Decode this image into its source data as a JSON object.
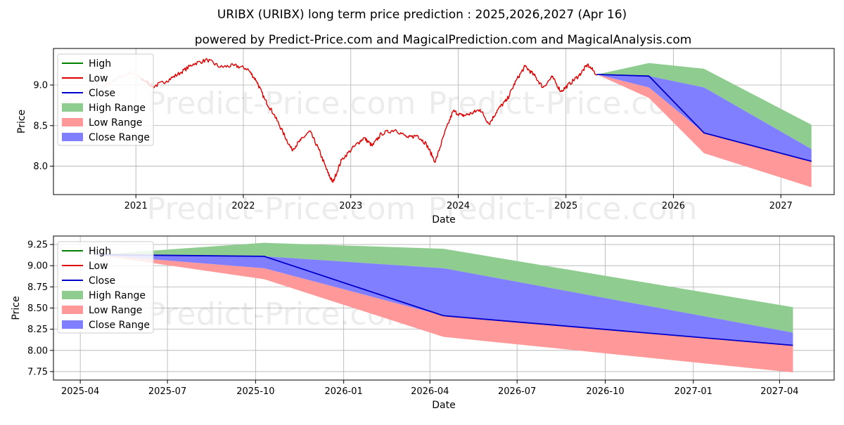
{
  "title": "URIBX (URIBX) long term price prediction : 2025,2026,2027 (Apr 16)",
  "subtitle": "powered by Predict-Price.com and MagicalPrediction.com and MagicalAnalysis.com",
  "watermark": "Predict-Price.com",
  "colors": {
    "high": "#008000",
    "low": "#dd0000",
    "close": "#0000cc",
    "high_range": "#8fcc8f",
    "low_range": "#ff9999",
    "close_range": "#7f7fff",
    "grid": "#b0b0b0"
  },
  "legend": {
    "placement": "top-left",
    "entries": [
      {
        "label": "High",
        "kind": "line",
        "color": "#008000"
      },
      {
        "label": "Low",
        "kind": "line",
        "color": "#dd0000"
      },
      {
        "label": "Close",
        "kind": "line",
        "color": "#0000cc"
      },
      {
        "label": "High Range",
        "kind": "patch",
        "color": "#8fcc8f"
      },
      {
        "label": "Low Range",
        "kind": "patch",
        "color": "#ff9999"
      },
      {
        "label": "Close Range",
        "kind": "patch",
        "color": "#7f7fff"
      }
    ]
  },
  "chart_data": [
    {
      "type": "line",
      "xlabel": "Date",
      "ylabel": "Price",
      "grid": true,
      "x_range": [
        "2020-03-27",
        "2027-07-01"
      ],
      "ylim": [
        7.65,
        9.45
      ],
      "x_ticks": [
        {
          "date": "2021-01-01",
          "label": "2021"
        },
        {
          "date": "2022-01-01",
          "label": "2022"
        },
        {
          "date": "2023-01-01",
          "label": "2023"
        },
        {
          "date": "2024-01-01",
          "label": "2024"
        },
        {
          "date": "2025-01-01",
          "label": "2025"
        },
        {
          "date": "2026-01-01",
          "label": "2026"
        },
        {
          "date": "2027-01-01",
          "label": "2027"
        }
      ],
      "y_ticks": [
        {
          "value": 8.0,
          "label": "8.0"
        },
        {
          "value": 8.5,
          "label": "8.5"
        },
        {
          "value": 9.0,
          "label": "9.0"
        }
      ],
      "history_low": [
        {
          "date": "2020-04-15",
          "value": 8.75
        },
        {
          "date": "2020-06-15",
          "value": 8.86
        },
        {
          "date": "2020-08-01",
          "value": 8.93
        },
        {
          "date": "2020-09-15",
          "value": 8.98
        },
        {
          "date": "2020-11-01",
          "value": 9.09
        },
        {
          "date": "2020-12-15",
          "value": 9.15
        },
        {
          "date": "2021-02-01",
          "value": 9.05
        },
        {
          "date": "2021-03-01",
          "value": 8.98
        },
        {
          "date": "2021-04-15",
          "value": 9.05
        },
        {
          "date": "2021-06-01",
          "value": 9.15
        },
        {
          "date": "2021-07-15",
          "value": 9.26
        },
        {
          "date": "2021-09-01",
          "value": 9.31
        },
        {
          "date": "2021-10-15",
          "value": 9.22
        },
        {
          "date": "2021-12-01",
          "value": 9.24
        },
        {
          "date": "2022-01-15",
          "value": 9.2
        },
        {
          "date": "2022-02-15",
          "value": 9.05
        },
        {
          "date": "2022-03-15",
          "value": 8.82
        },
        {
          "date": "2022-04-15",
          "value": 8.64
        },
        {
          "date": "2022-05-15",
          "value": 8.42
        },
        {
          "date": "2022-06-15",
          "value": 8.2
        },
        {
          "date": "2022-07-15",
          "value": 8.32
        },
        {
          "date": "2022-08-15",
          "value": 8.43
        },
        {
          "date": "2022-09-15",
          "value": 8.2
        },
        {
          "date": "2022-10-15",
          "value": 7.92
        },
        {
          "date": "2022-11-01",
          "value": 7.8
        },
        {
          "date": "2022-12-01",
          "value": 8.08
        },
        {
          "date": "2023-01-15",
          "value": 8.25
        },
        {
          "date": "2023-02-15",
          "value": 8.35
        },
        {
          "date": "2023-03-15",
          "value": 8.25
        },
        {
          "date": "2023-04-15",
          "value": 8.4
        },
        {
          "date": "2023-06-01",
          "value": 8.45
        },
        {
          "date": "2023-07-15",
          "value": 8.35
        },
        {
          "date": "2023-08-15",
          "value": 8.38
        },
        {
          "date": "2023-09-15",
          "value": 8.27
        },
        {
          "date": "2023-10-15",
          "value": 8.05
        },
        {
          "date": "2023-11-15",
          "value": 8.4
        },
        {
          "date": "2023-12-15",
          "value": 8.68
        },
        {
          "date": "2024-01-15",
          "value": 8.62
        },
        {
          "date": "2024-02-15",
          "value": 8.65
        },
        {
          "date": "2024-03-15",
          "value": 8.7
        },
        {
          "date": "2024-04-15",
          "value": 8.52
        },
        {
          "date": "2024-05-15",
          "value": 8.7
        },
        {
          "date": "2024-06-15",
          "value": 8.82
        },
        {
          "date": "2024-07-15",
          "value": 9.05
        },
        {
          "date": "2024-08-15",
          "value": 9.23
        },
        {
          "date": "2024-09-15",
          "value": 9.12
        },
        {
          "date": "2024-10-15",
          "value": 8.97
        },
        {
          "date": "2024-11-15",
          "value": 9.1
        },
        {
          "date": "2024-12-15",
          "value": 8.92
        },
        {
          "date": "2025-01-15",
          "value": 9.02
        },
        {
          "date": "2025-02-15",
          "value": 9.12
        },
        {
          "date": "2025-03-15",
          "value": 9.25
        },
        {
          "date": "2025-04-16",
          "value": 9.13
        }
      ],
      "forecast": {
        "close": [
          {
            "date": "2025-04-16",
            "value": 9.13
          },
          {
            "date": "2025-10-10",
            "value": 9.11
          },
          {
            "date": "2026-04-15",
            "value": 8.41
          },
          {
            "date": "2027-04-15",
            "value": 8.06
          }
        ],
        "high_range": [
          {
            "date": "2025-04-16",
            "upper": 9.13,
            "lower": 9.13
          },
          {
            "date": "2025-10-10",
            "upper": 9.27,
            "lower": 9.11
          },
          {
            "date": "2026-04-15",
            "upper": 9.2,
            "lower": 8.97
          },
          {
            "date": "2027-04-15",
            "upper": 8.51,
            "lower": 8.21
          }
        ],
        "close_range": [
          {
            "date": "2025-04-16",
            "upper": 9.13,
            "lower": 9.13
          },
          {
            "date": "2025-10-10",
            "upper": 9.11,
            "lower": 8.97
          },
          {
            "date": "2026-04-15",
            "upper": 8.97,
            "lower": 8.41
          },
          {
            "date": "2027-04-15",
            "upper": 8.21,
            "lower": 8.06
          }
        ],
        "low_range": [
          {
            "date": "2025-04-16",
            "upper": 9.13,
            "lower": 9.13
          },
          {
            "date": "2025-10-10",
            "upper": 8.97,
            "lower": 8.84
          },
          {
            "date": "2026-04-15",
            "upper": 8.41,
            "lower": 8.16
          },
          {
            "date": "2027-04-15",
            "upper": 8.06,
            "lower": 7.74
          }
        ]
      }
    },
    {
      "type": "line",
      "xlabel": "Date",
      "ylabel": "Price",
      "grid": true,
      "x_range": [
        "2025-03-04",
        "2027-05-28"
      ],
      "ylim": [
        7.65,
        9.35
      ],
      "x_ticks": [
        {
          "date": "2025-04-01",
          "label": "2025-04"
        },
        {
          "date": "2025-07-01",
          "label": "2025-07"
        },
        {
          "date": "2025-10-01",
          "label": "2025-10"
        },
        {
          "date": "2026-01-01",
          "label": "2026-01"
        },
        {
          "date": "2026-04-01",
          "label": "2026-04"
        },
        {
          "date": "2026-07-01",
          "label": "2026-07"
        },
        {
          "date": "2026-10-01",
          "label": "2026-10"
        },
        {
          "date": "2027-01-01",
          "label": "2027-01"
        },
        {
          "date": "2027-04-01",
          "label": "2027-04"
        }
      ],
      "y_ticks": [
        {
          "value": 7.75,
          "label": "7.75"
        },
        {
          "value": 8.0,
          "label": "8.00"
        },
        {
          "value": 8.25,
          "label": "8.25"
        },
        {
          "value": 8.5,
          "label": "8.50"
        },
        {
          "value": 8.75,
          "label": "8.75"
        },
        {
          "value": 9.0,
          "label": "9.00"
        },
        {
          "value": 9.25,
          "label": "9.25"
        }
      ],
      "forecast": {
        "close": [
          {
            "date": "2025-04-16",
            "value": 9.13
          },
          {
            "date": "2025-10-10",
            "value": 9.11
          },
          {
            "date": "2026-04-15",
            "value": 8.41
          },
          {
            "date": "2027-04-15",
            "value": 8.06
          }
        ],
        "high_range": [
          {
            "date": "2025-04-16",
            "upper": 9.13,
            "lower": 9.13
          },
          {
            "date": "2025-10-10",
            "upper": 9.27,
            "lower": 9.11
          },
          {
            "date": "2026-04-15",
            "upper": 9.2,
            "lower": 8.97
          },
          {
            "date": "2027-04-15",
            "upper": 8.51,
            "lower": 8.21
          }
        ],
        "close_range": [
          {
            "date": "2025-04-16",
            "upper": 9.13,
            "lower": 9.13
          },
          {
            "date": "2025-10-10",
            "upper": 9.11,
            "lower": 8.97
          },
          {
            "date": "2026-04-15",
            "upper": 8.97,
            "lower": 8.41
          },
          {
            "date": "2027-04-15",
            "upper": 8.21,
            "lower": 8.06
          }
        ],
        "low_range": [
          {
            "date": "2025-04-16",
            "upper": 9.13,
            "lower": 9.13
          },
          {
            "date": "2025-10-10",
            "upper": 8.97,
            "lower": 8.84
          },
          {
            "date": "2026-04-15",
            "upper": 8.41,
            "lower": 8.16
          },
          {
            "date": "2027-04-15",
            "upper": 8.06,
            "lower": 7.74
          }
        ]
      }
    }
  ]
}
